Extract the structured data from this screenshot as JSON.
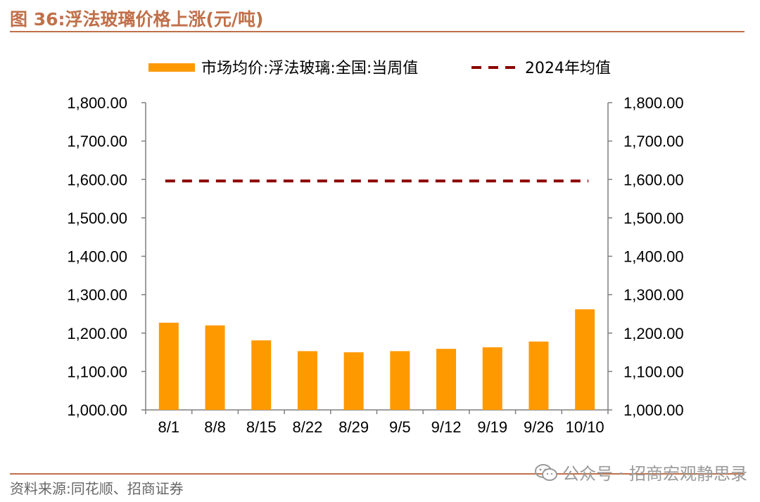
{
  "header": {
    "figure_title": "图 36:浮法玻璃价格上涨(元/吨)"
  },
  "footer": {
    "source": "资料来源:同花顺、招商证券",
    "watermark": "公众号 · 招商宏观静思录"
  },
  "colors": {
    "bar": "#FF9900",
    "avg_line": "#8B0000",
    "header_accent": "#C0704A",
    "axis": "#7f7f7f"
  },
  "chart_data": {
    "type": "bar",
    "categories": [
      "8/1",
      "8/8",
      "8/15",
      "8/22",
      "8/29",
      "9/5",
      "9/12",
      "9/19",
      "9/26",
      "10/10"
    ],
    "series": [
      {
        "name": "市场均价:浮法玻璃:全国:当周值",
        "type": "bar",
        "values": [
          1227,
          1220,
          1181,
          1153,
          1150,
          1153,
          1159,
          1163,
          1178,
          1262
        ]
      },
      {
        "name": "2024年均值",
        "type": "line",
        "style": "dashed",
        "values": [
          1596,
          1596,
          1596,
          1596,
          1596,
          1596,
          1596,
          1596,
          1596,
          1596
        ]
      }
    ],
    "ylim": [
      1000,
      1800
    ],
    "yticks": [
      "1,000.00",
      "1,100.00",
      "1,200.00",
      "1,300.00",
      "1,400.00",
      "1,500.00",
      "1,600.00",
      "1,700.00",
      "1,800.00"
    ],
    "secondary_y": true,
    "grid": false,
    "legend_position": "top-center"
  }
}
